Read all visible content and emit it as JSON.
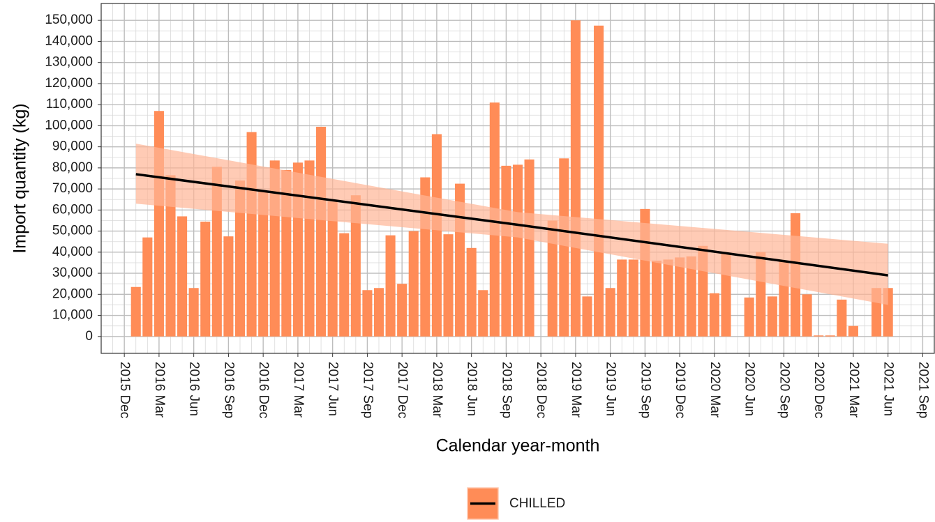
{
  "chart_data": {
    "type": "bar",
    "x_label": "Calendar year-month",
    "y_label": "Import quantity (kg)",
    "x": [
      "2016 Jan",
      "2016 Feb",
      "2016 Mar",
      "2016 Apr",
      "2016 May",
      "2016 Jun",
      "2016 Jul",
      "2016 Aug",
      "2016 Sep",
      "2016 Oct",
      "2016 Nov",
      "2016 Dec",
      "2017 Jan",
      "2017 Feb",
      "2017 Mar",
      "2017 Apr",
      "2017 May",
      "2017 Jun",
      "2017 Jul",
      "2017 Aug",
      "2017 Sep",
      "2017 Oct",
      "2017 Nov",
      "2017 Dec",
      "2018 Jan",
      "2018 Feb",
      "2018 Mar",
      "2018 Apr",
      "2018 May",
      "2018 Jun",
      "2018 Jul",
      "2018 Aug",
      "2018 Sep",
      "2018 Oct",
      "2018 Nov",
      "2018 Dec",
      "2019 Jan",
      "2019 Feb",
      "2019 Mar",
      "2019 Apr",
      "2019 May",
      "2019 Jun",
      "2019 Jul",
      "2019 Aug",
      "2019 Sep",
      "2019 Oct",
      "2019 Nov",
      "2019 Dec",
      "2020 Jan",
      "2020 Feb",
      "2020 Mar",
      "2020 Apr",
      "2020 May",
      "2020 Jun",
      "2020 Jul",
      "2020 Aug",
      "2020 Sep",
      "2020 Oct",
      "2020 Nov",
      "2020 Dec",
      "2021 Jan",
      "2021 Feb",
      "2021 Mar",
      "2021 Apr",
      "2021 May",
      "2021 Jun"
    ],
    "series": [
      {
        "name": "CHILLED",
        "color": "#ff8c57",
        "values": [
          23500,
          47000,
          107000,
          76500,
          57000,
          23000,
          54500,
          80500,
          47500,
          74000,
          97000,
          69000,
          83500,
          79000,
          82500,
          83500,
          99500,
          64000,
          49000,
          67000,
          22000,
          23000,
          48000,
          25000,
          50000,
          75500,
          96000,
          48500,
          72500,
          42000,
          22000,
          111000,
          81000,
          81500,
          84000,
          null,
          55000,
          84500,
          150000,
          19000,
          147500,
          23000,
          36500,
          36500,
          60500,
          36000,
          36500,
          37500,
          38000,
          43000,
          20500,
          39500,
          null,
          18500,
          40000,
          19000,
          36000,
          58500,
          20000,
          500,
          500,
          17500,
          5000,
          null,
          23000,
          23000
        ]
      }
    ],
    "trend": {
      "x": [
        "2016 Jan",
        "2018 Oct",
        "2021 Jun"
      ],
      "values": [
        77000,
        53000,
        29000
      ],
      "lower": [
        63000,
        47000,
        15000
      ],
      "upper": [
        91500,
        59000,
        44000
      ],
      "color": "#000000",
      "band_color": "#ffb595"
    },
    "xlim": [
      "2015 Oct",
      "2021 Oct"
    ],
    "xticks": [
      "2015 Dec",
      "2016 Mar",
      "2016 Jun",
      "2016 Sep",
      "2016 Dec",
      "2017 Mar",
      "2017 Jun",
      "2017 Sep",
      "2017 Dec",
      "2018 Mar",
      "2018 Jun",
      "2018 Sep",
      "2018 Dec",
      "2019 Mar",
      "2019 Jun",
      "2019 Sep",
      "2019 Dec",
      "2020 Mar",
      "2020 Jun",
      "2020 Sep",
      "2020 Dec",
      "2021 Mar",
      "2021 Jun",
      "2021 Sep"
    ],
    "ylim": [
      -8000,
      158000
    ],
    "yticks": [
      0,
      {
        "value": 10000,
        "label": "10,000"
      },
      {
        "value": 20000,
        "label": "20,000"
      },
      {
        "value": 30000,
        "label": "30,000"
      },
      {
        "value": 40000,
        "label": "40,000"
      },
      {
        "value": 50000,
        "label": "50,000"
      },
      {
        "value": 60000,
        "label": "60,000"
      },
      {
        "value": 70000,
        "label": "70,000"
      },
      {
        "value": 80000,
        "label": "80,000"
      },
      {
        "value": 90000,
        "label": "90,000"
      },
      {
        "value": 100000,
        "label": "100,000"
      },
      {
        "value": 110000,
        "label": "110,000"
      },
      {
        "value": 120000,
        "label": "120,000"
      },
      {
        "value": 130000,
        "label": "130,000"
      },
      {
        "value": 140000,
        "label": "140,000"
      },
      {
        "value": 150000,
        "label": "150,000"
      }
    ],
    "grid": true,
    "legend": "bottom"
  }
}
